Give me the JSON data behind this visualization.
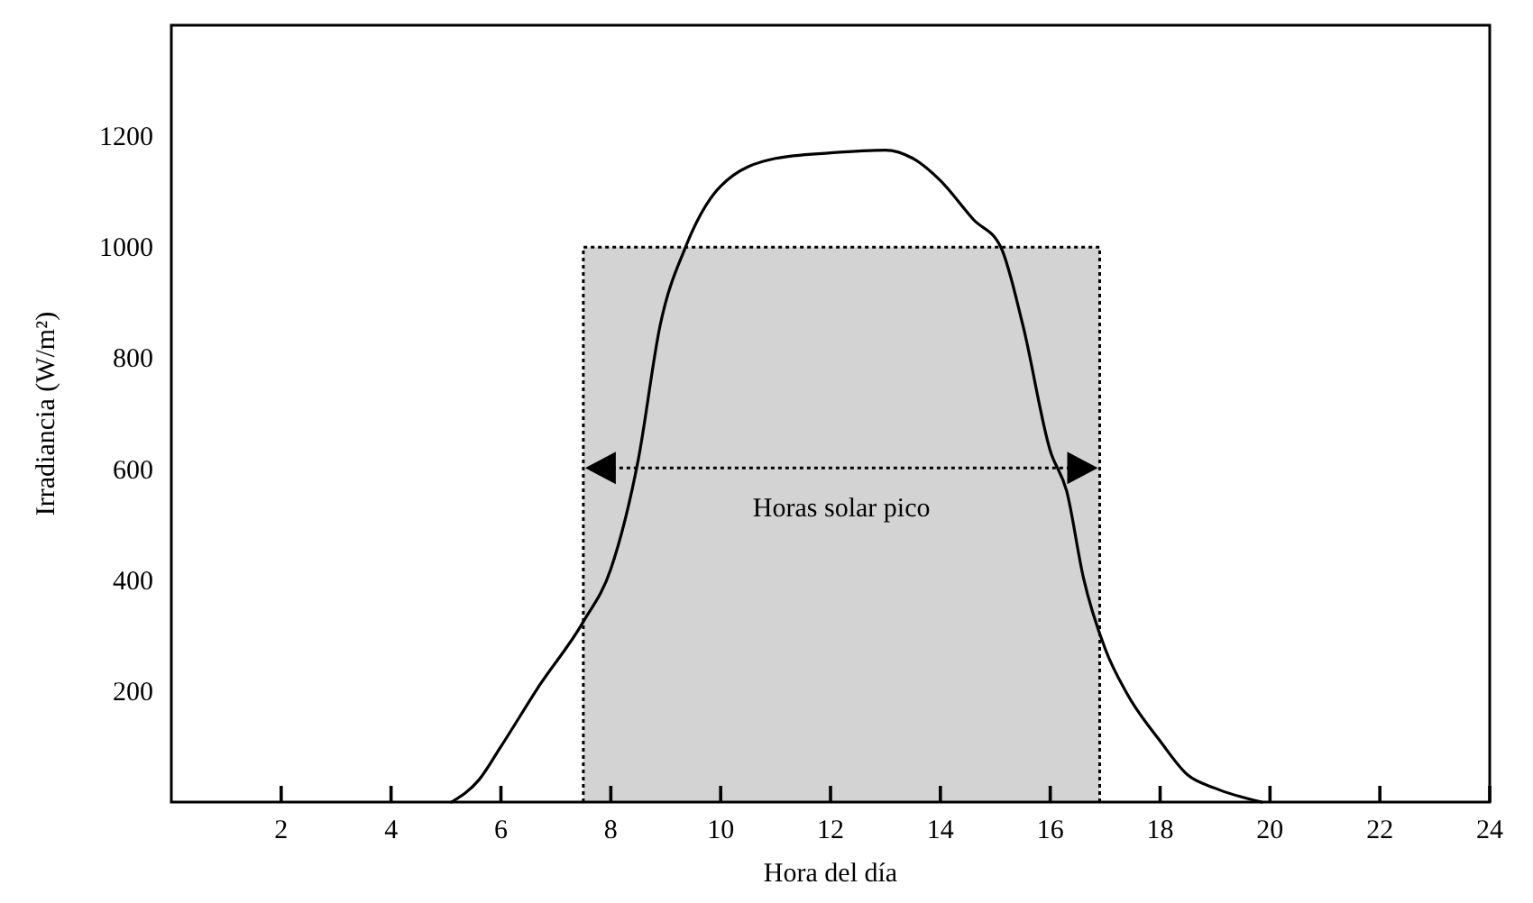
{
  "chart_data": {
    "type": "line",
    "xlabel": "Hora del día",
    "ylabel": "Irradiancia (W/m²)",
    "xlim": [
      0,
      24
    ],
    "ylim": [
      0,
      1400
    ],
    "xticks": [
      2,
      4,
      6,
      8,
      10,
      12,
      14,
      16,
      18,
      20,
      22,
      24
    ],
    "yticks": [
      200,
      400,
      600,
      800,
      1000,
      1200
    ],
    "grid": false,
    "marker": "none",
    "series": [
      {
        "type": "area",
        "color": "#d3d3d3",
        "line_style": "dotted",
        "x": [
          7.5,
          16.9
        ],
        "values": [
          1000,
          1000
        ]
      },
      {
        "color": "#000000",
        "line_style": "solid",
        "x": [
          5.1,
          5.6,
          6,
          6.7,
          7.5,
          8,
          8.5,
          8.9,
          9.36,
          10,
          11,
          12,
          13,
          13.5,
          14,
          14.6,
          15.1,
          15.5,
          16,
          16.3,
          16.6,
          17,
          17.4,
          18,
          18.5,
          19,
          19.85
        ],
        "values": [
          0,
          40,
          100,
          210,
          325,
          420,
          617,
          860,
          1000,
          1110,
          1160,
          1170,
          1175,
          1160,
          1120,
          1050,
          1000,
          860,
          633,
          560,
          406,
          276,
          195,
          110,
          49,
          25,
          0
        ]
      }
    ],
    "annotations": [
      "Horas solar pico"
    ]
  }
}
